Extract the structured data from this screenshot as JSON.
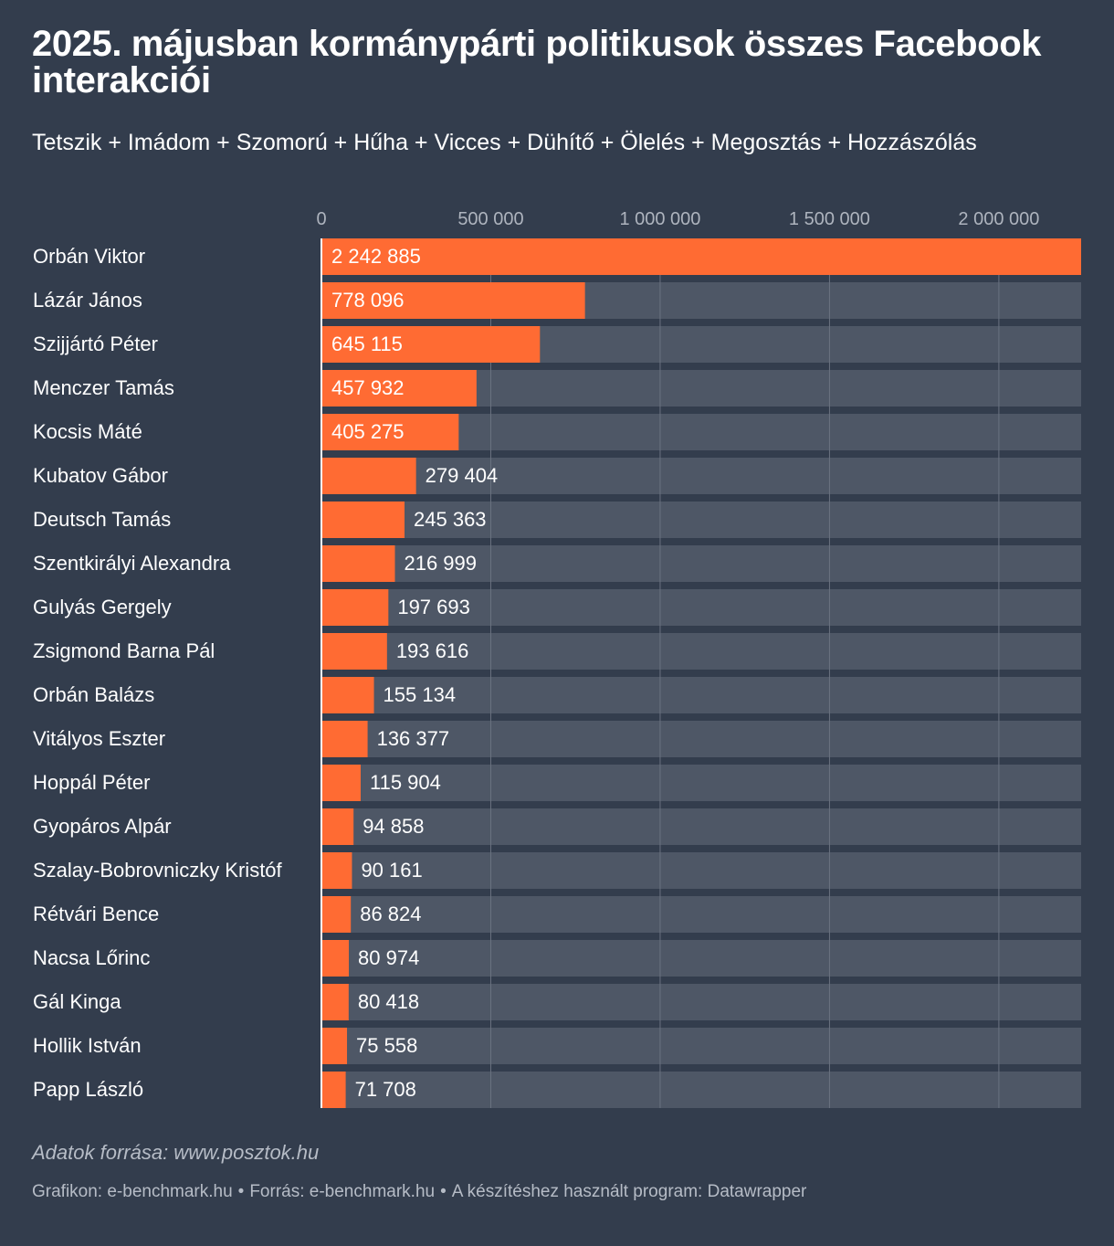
{
  "header": {
    "title": "2025. májusban kormánypárti politikusok összes Facebook interakciói",
    "subtitle": "Tetszik + Imádom + Szomorú + Hűha + Vicces + Dühítő + Ölelés + Megosztás + Hozzászólás"
  },
  "footer": {
    "note": "Adatok forrása: www.posztok.hu",
    "credit_graphic": "Grafikon: e-benchmark.hu",
    "credit_source": "Forrás: e-benchmark.hu",
    "credit_tool": "A készítéshez használt program: Datawrapper",
    "separator": "•"
  },
  "colors": {
    "background": "#333d4d",
    "bar": "#ff6b33",
    "track": "#4e5766",
    "gridline": "#6a7280",
    "tick_text": "#aeb4be"
  },
  "chart_data": {
    "type": "bar",
    "orientation": "horizontal",
    "title": "2025. májusban kormánypárti politikusok összes Facebook interakciói",
    "subtitle": "Tetszik + Imádom + Szomorú + Hűha + Vicces + Dühítő + Ölelés + Megosztás + Hozzászólás",
    "xlim": [
      0,
      2242885
    ],
    "ticks": [
      0,
      500000,
      1000000,
      1500000,
      2000000
    ],
    "tick_labels": [
      "0",
      "500 000",
      "1 000 000",
      "1 500 000",
      "2 000 000"
    ],
    "grid": true,
    "categories": [
      "Orbán Viktor",
      "Lázár János",
      "Szijjártó Péter",
      "Menczer Tamás",
      "Kocsis Máté",
      "Kubatov Gábor",
      "Deutsch Tamás",
      "Szentkirályi Alexandra",
      "Gulyás Gergely",
      "Zsigmond Barna Pál",
      "Orbán Balázs",
      "Vitályos Eszter",
      "Hoppál Péter",
      "Gyopáros Alpár",
      "Szalay-Bobrovniczky Kristóf",
      "Rétvári Bence",
      "Nacsa Lőrinc",
      "Gál Kinga",
      "Hollik István",
      "Papp László"
    ],
    "values": [
      2242885,
      778096,
      645115,
      457932,
      405275,
      279404,
      245363,
      216999,
      197693,
      193616,
      155134,
      136377,
      115904,
      94858,
      90161,
      86824,
      80974,
      80418,
      75558,
      71708
    ],
    "value_labels": [
      "2 242 885",
      "778 096",
      "645 115",
      "457 932",
      "405 275",
      "279 404",
      "245 363",
      "216 999",
      "197 693",
      "193 616",
      "155 134",
      "136 377",
      "115 904",
      "94 858",
      "90 161",
      "86 824",
      "80 974",
      "80 418",
      "75 558",
      "71 708"
    ]
  }
}
